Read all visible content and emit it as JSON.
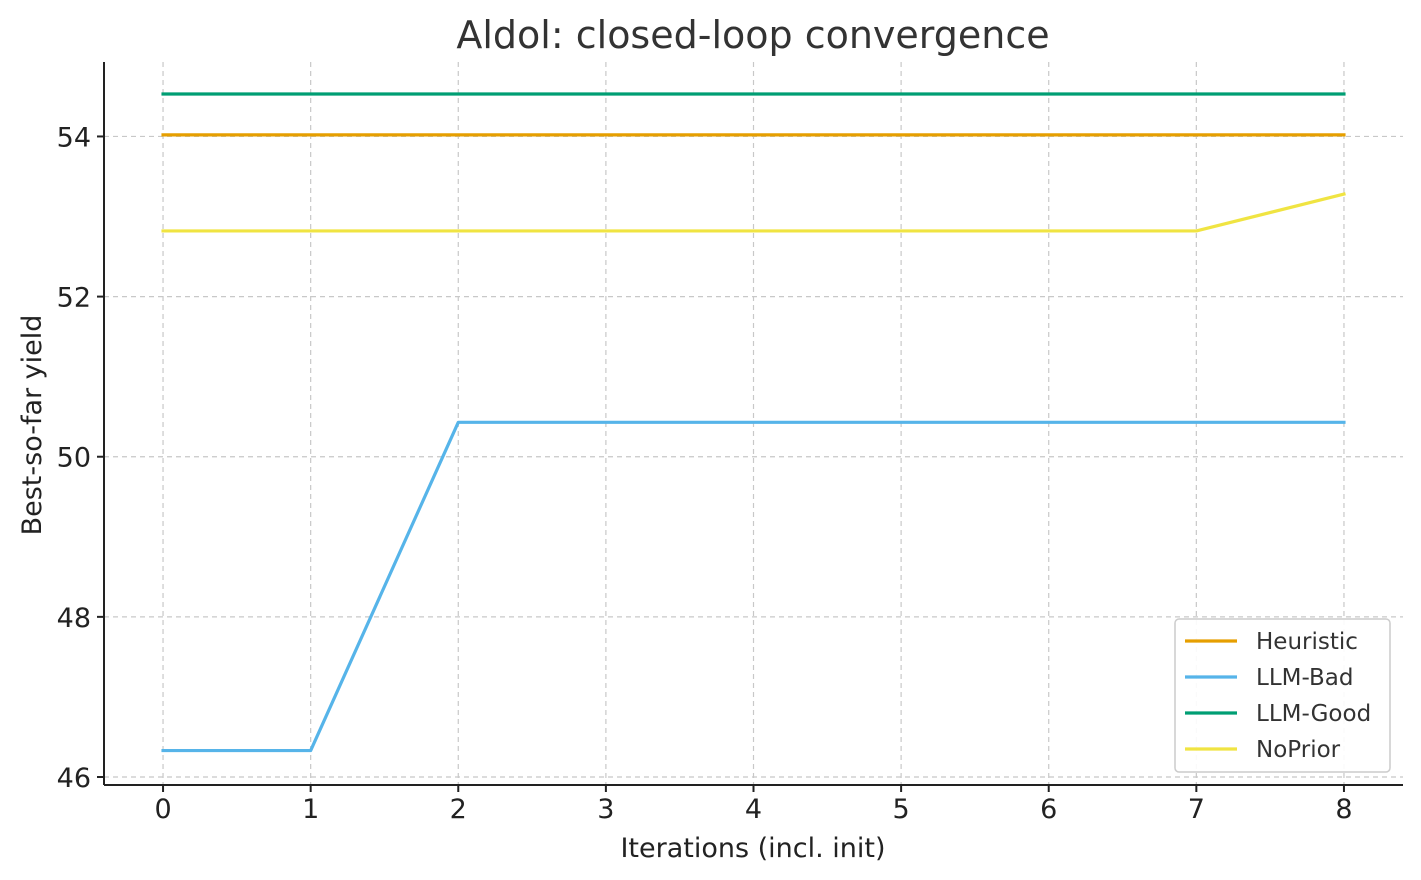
{
  "chart_data": {
    "type": "line",
    "title": "Aldol: closed-loop convergence",
    "xlabel": "Iterations (incl. init)",
    "ylabel": "Best-so-far yield",
    "x": [
      0,
      1,
      2,
      3,
      4,
      5,
      6,
      7,
      8
    ],
    "xlim": [
      -0.4,
      8.4
    ],
    "ylim": [
      45.9,
      54.93
    ],
    "xticks": [
      "0",
      "1",
      "2",
      "3",
      "4",
      "5",
      "6",
      "7",
      "8"
    ],
    "yticks": [
      "46",
      "48",
      "50",
      "52",
      "54"
    ],
    "grid": true,
    "legend_position": "lower-right",
    "series": [
      {
        "name": "Heuristic",
        "color": "#E69F00",
        "values": [
          54.02,
          54.02,
          54.02,
          54.02,
          54.02,
          54.02,
          54.02,
          54.02,
          54.02
        ]
      },
      {
        "name": "LLM-Bad",
        "color": "#56B4E9",
        "values": [
          46.33,
          46.33,
          50.43,
          50.43,
          50.43,
          50.43,
          50.43,
          50.43,
          50.43
        ]
      },
      {
        "name": "LLM-Good",
        "color": "#009E73",
        "values": [
          54.53,
          54.53,
          54.53,
          54.53,
          54.53,
          54.53,
          54.53,
          54.53,
          54.53
        ]
      },
      {
        "name": "NoPrior",
        "color": "#F0E442",
        "values": [
          52.82,
          52.82,
          52.82,
          52.82,
          52.82,
          52.82,
          52.82,
          52.82,
          53.28
        ]
      }
    ]
  }
}
